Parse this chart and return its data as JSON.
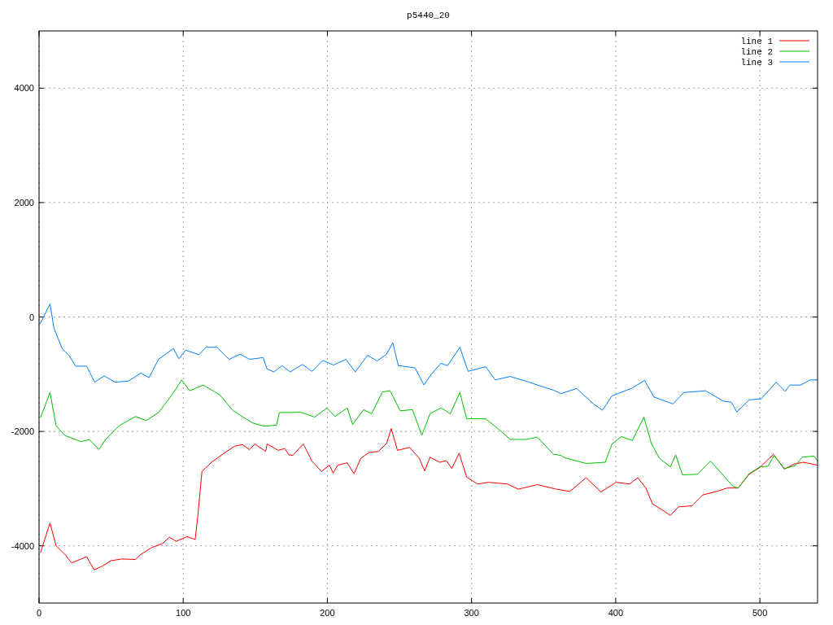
{
  "chart_data": {
    "type": "line",
    "title": "p5440_20",
    "xlim": [
      0,
      540
    ],
    "xticks": [
      0,
      100,
      200,
      300,
      400,
      500
    ],
    "ylim": [
      -5000,
      5000
    ],
    "yticks": [
      -4000,
      -2000,
      0,
      2000,
      4000
    ],
    "grid": true,
    "legend": "top right",
    "series": [
      {
        "name": "line 1",
        "color": "#ff0000",
        "x": [
          1,
          7.6,
          11.8,
          17.9,
          22.6,
          33,
          38.2,
          44.3,
          49.9,
          57.5,
          66.9,
          70.6,
          78.2,
          85.7,
          90.4,
          95.1,
          102.7,
          108.3,
          110.2,
          113,
          119.6,
          129,
          135.6,
          141.2,
          146,
          149.7,
          157.2,
          158.2,
          165.8,
          170.5,
          173.3,
          176,
          183.3,
          189.3,
          195.9,
          201.5,
          204,
          207.2,
          213.8,
          218.5,
          223.2,
          228.8,
          235.4,
          241.1,
          244.3,
          248.6,
          257.1,
          263.7,
          267.5,
          271.2,
          277.8,
          282.5,
          286.3,
          291.4,
          296.6,
          304.2,
          311.7,
          324.9,
          332.4,
          345.6,
          358.8,
          368.2,
          379.5,
          389.8,
          400.2,
          409.6,
          415.3,
          420.9,
          425.6,
          432.2,
          437.9,
          443.5,
          452.9,
          460.5,
          469.9,
          477.4,
          485,
          492.5,
          500,
          509.4,
          517,
          523.7,
          530.2,
          540
        ],
        "values": [
          -4120,
          -3600,
          -4000,
          -4150,
          -4300,
          -4190,
          -4420,
          -4350,
          -4260,
          -4230,
          -4240,
          -4150,
          -4030,
          -3960,
          -3850,
          -3920,
          -3840,
          -3890,
          -3460,
          -2700,
          -2540,
          -2370,
          -2260,
          -2230,
          -2320,
          -2220,
          -2350,
          -2220,
          -2330,
          -2300,
          -2410,
          -2420,
          -2220,
          -2520,
          -2700,
          -2590,
          -2730,
          -2590,
          -2550,
          -2740,
          -2470,
          -2370,
          -2350,
          -2210,
          -1950,
          -2330,
          -2280,
          -2470,
          -2690,
          -2450,
          -2540,
          -2510,
          -2650,
          -2380,
          -2800,
          -2920,
          -2890,
          -2920,
          -3010,
          -2930,
          -3010,
          -3050,
          -2810,
          -3060,
          -2890,
          -2920,
          -2810,
          -2990,
          -3270,
          -3370,
          -3470,
          -3320,
          -3300,
          -3110,
          -3050,
          -2990,
          -2990,
          -2750,
          -2630,
          -2400,
          -2660,
          -2570,
          -2540,
          -2590
        ]
      },
      {
        "name": "line 2",
        "color": "#00c000",
        "x": [
          1,
          7.6,
          11.8,
          17.9,
          29.2,
          34.9,
          41.5,
          46.2,
          55.6,
          66.9,
          74.4,
          82.9,
          92.3,
          98.9,
          104.5,
          113.9,
          125.3,
          134.7,
          147.9,
          156.3,
          164.8,
          166.7,
          176,
          180.8,
          191.2,
          199.7,
          205.3,
          213.8,
          217.5,
          225.1,
          230.7,
          238.2,
          243.5,
          250.5,
          259,
          265.5,
          271.2,
          278.8,
          285.3,
          291.9,
          296.6,
          309.8,
          319.2,
          326.8,
          338.1,
          345.6,
          356.9,
          362.1,
          364.4,
          379.5,
          392.7,
          397.4,
          404,
          411.5,
          419.6,
          424.7,
          430.3,
          437.9,
          441.6,
          446.3,
          456.7,
          465.8,
          473.7,
          481.3,
          485,
          492.5,
          500,
          505.6,
          509.8,
          517,
          524.6,
          529.3,
          537.7,
          540
        ],
        "values": [
          -1760,
          -1320,
          -1900,
          -2070,
          -2180,
          -2140,
          -2320,
          -2140,
          -1900,
          -1740,
          -1810,
          -1670,
          -1360,
          -1100,
          -1290,
          -1190,
          -1360,
          -1640,
          -1850,
          -1910,
          -1890,
          -1670,
          -1670,
          -1660,
          -1750,
          -1590,
          -1740,
          -1590,
          -1880,
          -1620,
          -1690,
          -1310,
          -1290,
          -1640,
          -1620,
          -2070,
          -1690,
          -1590,
          -1690,
          -1320,
          -1780,
          -1780,
          -1970,
          -2140,
          -2140,
          -2100,
          -2400,
          -2420,
          -2460,
          -2560,
          -2540,
          -2220,
          -2090,
          -2160,
          -1750,
          -2210,
          -2470,
          -2620,
          -2410,
          -2760,
          -2750,
          -2520,
          -2740,
          -2960,
          -2990,
          -2740,
          -2620,
          -2610,
          -2420,
          -2650,
          -2600,
          -2450,
          -2430,
          -2520
        ]
      },
      {
        "name": "line 3",
        "color": "#0080ff",
        "x": [
          0,
          1,
          7.6,
          10.4,
          16,
          20.7,
          25.4,
          33,
          38.6,
          45.2,
          52.8,
          62,
          70.6,
          76.3,
          82.9,
          93.2,
          97,
          101.7,
          111,
          115.8,
          123.4,
          131.9,
          139.4,
          146,
          155.4,
          158.2,
          162.9,
          168.6,
          174.2,
          178,
          182.7,
          189.3,
          196.8,
          204.3,
          212.8,
          219.4,
          227.9,
          234.5,
          241,
          245.4,
          249.2,
          260.8,
          267,
          272.1,
          278.7,
          283.4,
          291.9,
          297.6,
          309.8,
          316.4,
          326.8,
          340,
          349.4,
          356.9,
          362.1,
          372.9,
          385.1,
          390.8,
          397.4,
          411.5,
          420,
          426.6,
          439.8,
          447.3,
          462.4,
          474.6,
          480.2,
          484,
          492.5,
          501,
          511.3,
          517.5,
          520.8,
          528.2,
          534.9,
          540
        ],
        "values": [
          -110,
          -110,
          230,
          -200,
          -550,
          -670,
          -860,
          -860,
          -1140,
          -1030,
          -1140,
          -1120,
          -980,
          -1060,
          -740,
          -550,
          -730,
          -580,
          -660,
          -530,
          -530,
          -740,
          -650,
          -740,
          -710,
          -910,
          -960,
          -850,
          -960,
          -900,
          -830,
          -950,
          -760,
          -840,
          -740,
          -960,
          -670,
          -770,
          -650,
          -450,
          -850,
          -890,
          -1190,
          -1000,
          -810,
          -850,
          -530,
          -950,
          -870,
          -1100,
          -1040,
          -1140,
          -1220,
          -1280,
          -1340,
          -1250,
          -1530,
          -1630,
          -1380,
          -1240,
          -1110,
          -1400,
          -1520,
          -1320,
          -1290,
          -1470,
          -1490,
          -1660,
          -1450,
          -1430,
          -1140,
          -1300,
          -1190,
          -1190,
          -1100,
          -1100
        ]
      }
    ]
  }
}
